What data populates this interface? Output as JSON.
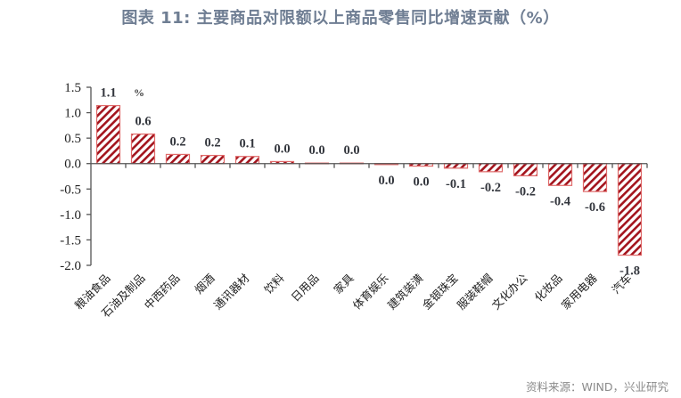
{
  "title": "图表 11: 主要商品对限额以上商品零售同比增速贡献（%）",
  "source": "资料来源：WIND，兴业研究",
  "colors": {
    "title": "#6f7e93",
    "bar_hatch": "#a3141d",
    "bar_border": "#e06a6a",
    "axis": "#555555",
    "source": "#8a8a8a"
  },
  "chart_data": {
    "type": "bar",
    "title": "图表 11: 主要商品对限额以上商品零售同比增速贡献（%）",
    "xlabel": "",
    "ylabel": "",
    "unit_annotation": "%",
    "ylim": [
      -2.0,
      1.5
    ],
    "yticks": [
      1.5,
      1.0,
      0.5,
      0.0,
      -0.5,
      -1.0,
      -1.5,
      -2.0
    ],
    "ytick_labels": [
      "1.5",
      "1.0",
      "0.5",
      "0.0",
      "-0.5",
      "-1.0",
      "-1.5",
      "-2.0"
    ],
    "grid": false,
    "legend": null,
    "categories": [
      "粮油食品",
      "石油及制品",
      "中西药品",
      "烟酒",
      "通讯器材",
      "饮料",
      "日用品",
      "家具",
      "体育娱乐",
      "建筑装潢",
      "金银珠宝",
      "服装鞋帽",
      "文化办公",
      "化妆品",
      "家用电器",
      "汽车"
    ],
    "values": [
      1.14,
      0.58,
      0.18,
      0.16,
      0.14,
      0.04,
      0.01,
      0.01,
      -0.02,
      -0.05,
      -0.09,
      -0.16,
      -0.24,
      -0.43,
      -0.55,
      -1.8
    ],
    "data_labels": [
      "1.1",
      "0.6",
      "0.2",
      "0.2",
      "0.1",
      "0.0",
      "0.0",
      "0.0",
      "0.0",
      "0.0",
      "-0.1",
      "-0.2",
      "-0.2",
      "-0.4",
      "-0.6",
      "-1.8"
    ]
  }
}
